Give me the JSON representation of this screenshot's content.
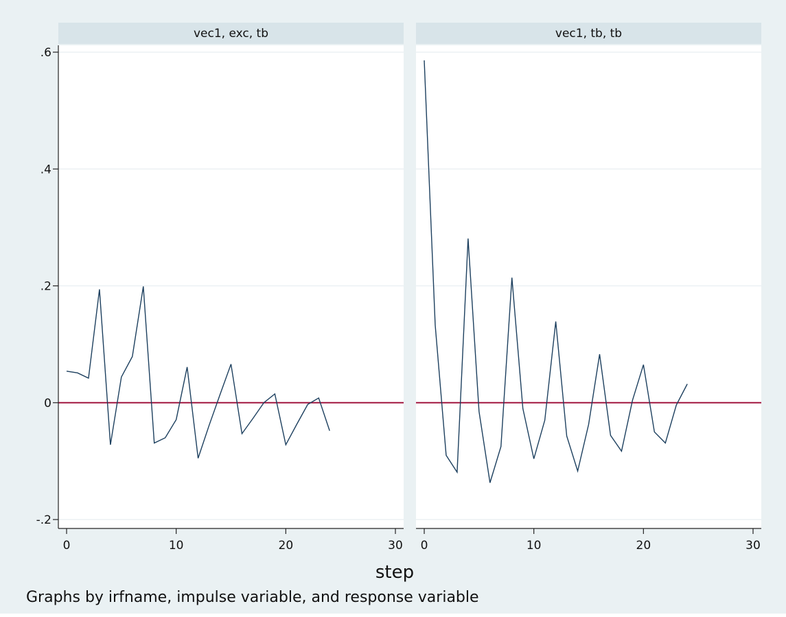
{
  "chart_data": {
    "type": "line",
    "xlabel": "step",
    "note": "Graphs by irfname, impulse variable, and response variable",
    "xlim": [
      0,
      30
    ],
    "ylim": [
      -0.2,
      0.6
    ],
    "x_ticks": [
      0,
      10,
      20,
      30
    ],
    "x_tick_labels": [
      "0",
      "10",
      "20",
      "30"
    ],
    "y_ticks": [
      -0.2,
      0,
      0.2,
      0.4,
      0.6
    ],
    "y_tick_labels": [
      "-.2",
      "0",
      ".2",
      ".4",
      ".6"
    ],
    "grid": true,
    "reference_line": {
      "y": 0,
      "color": "#a0153e"
    },
    "colors": {
      "outer_background": "#eaf1f3",
      "strip_background": "#d8e4e9",
      "plot_background": "#ffffff",
      "line": "#1c3f5e",
      "grid": "#e8eef1"
    },
    "panels": [
      {
        "title": "vec1, exc, tb",
        "x": [
          0,
          1,
          2,
          3,
          4,
          5,
          6,
          7,
          8,
          9,
          10,
          11,
          12,
          13,
          14,
          15,
          16,
          17,
          18,
          19,
          20,
          21,
          22,
          23,
          24
        ],
        "y": [
          0.054,
          0.051,
          0.042,
          0.194,
          -0.072,
          0.044,
          0.079,
          0.199,
          -0.069,
          -0.06,
          -0.029,
          0.061,
          -0.095,
          -0.039,
          0.014,
          0.066,
          -0.053,
          -0.027,
          0.0,
          0.015,
          -0.072,
          -0.037,
          -0.003,
          0.008,
          -0.048
        ]
      },
      {
        "title": "vec1, tb, tb",
        "x": [
          0,
          1,
          2,
          3,
          4,
          5,
          6,
          7,
          8,
          9,
          10,
          11,
          12,
          13,
          14,
          15,
          16,
          17,
          18,
          19,
          20,
          21,
          22,
          23,
          24
        ],
        "y": [
          0.586,
          0.133,
          -0.09,
          -0.119,
          0.281,
          -0.015,
          -0.137,
          -0.075,
          0.214,
          -0.01,
          -0.096,
          -0.03,
          0.139,
          -0.057,
          -0.117,
          -0.037,
          0.083,
          -0.056,
          -0.083,
          0.004,
          0.065,
          -0.05,
          -0.069,
          -0.004,
          0.032
        ]
      }
    ]
  }
}
